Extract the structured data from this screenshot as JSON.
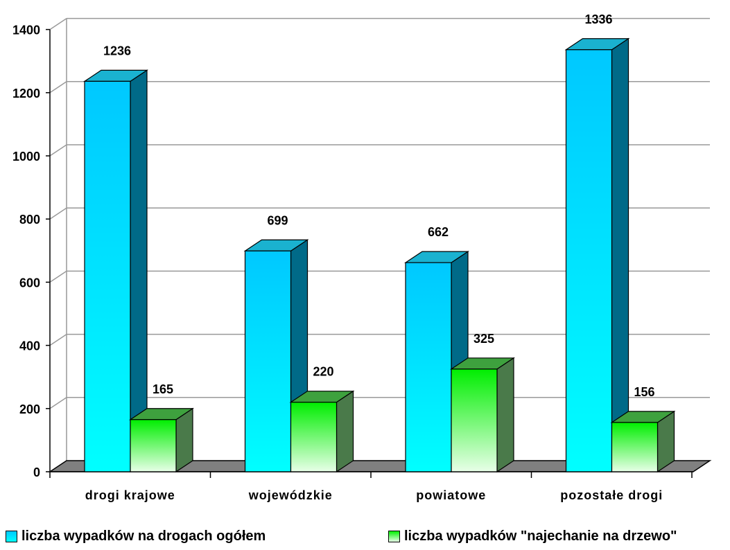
{
  "chart_data": {
    "type": "bar",
    "categories": [
      "drogi krajowe",
      "wojewódzkie",
      "powiatowe",
      "pozostałe drogi"
    ],
    "series": [
      {
        "name": "liczba wypadków na drogach ogółem",
        "values": [
          1236,
          699,
          662,
          1336
        ],
        "color": "#00ccff"
      },
      {
        "name": "liczba wypadków \"najechanie na drzewo\"",
        "values": [
          165,
          220,
          325,
          156
        ],
        "color": "#00ee00"
      }
    ],
    "yticks": [
      0,
      200,
      400,
      600,
      800,
      1000,
      1200,
      1400
    ],
    "ylim": [
      0,
      1400
    ],
    "grid": true,
    "legend_position": "bottom",
    "style": "3d-clustered-column"
  }
}
